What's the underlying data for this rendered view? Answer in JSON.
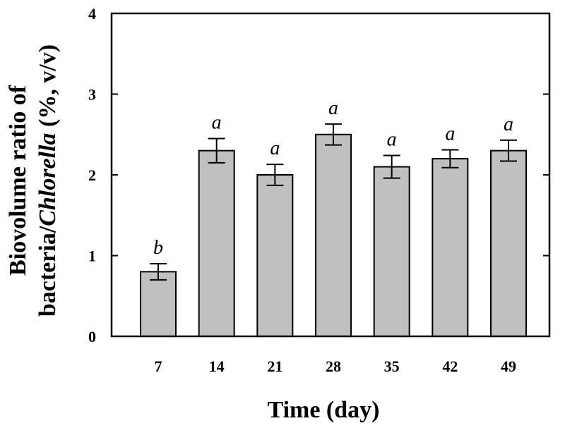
{
  "chart_data": {
    "type": "bar",
    "categories": [
      "7",
      "14",
      "21",
      "28",
      "35",
      "42",
      "49"
    ],
    "values": [
      0.8,
      2.3,
      2.0,
      2.5,
      2.1,
      2.2,
      2.3
    ],
    "errors": [
      0.1,
      0.15,
      0.13,
      0.13,
      0.14,
      0.11,
      0.13
    ],
    "significance": [
      "b",
      "a",
      "a",
      "a",
      "a",
      "a",
      "a"
    ],
    "xlabel": "Time (day)",
    "ylabel_line1": "Biovolume ratio of",
    "ylabel_line2_prefix": "bacteria/",
    "ylabel_line2_italic": "Chlorella",
    "ylabel_line2_suffix": " (%, v/v)",
    "ylim": [
      0,
      4
    ],
    "yticks": [
      0,
      1,
      2,
      3,
      4
    ],
    "bar_color": "#c0c0c0",
    "grid": false
  }
}
